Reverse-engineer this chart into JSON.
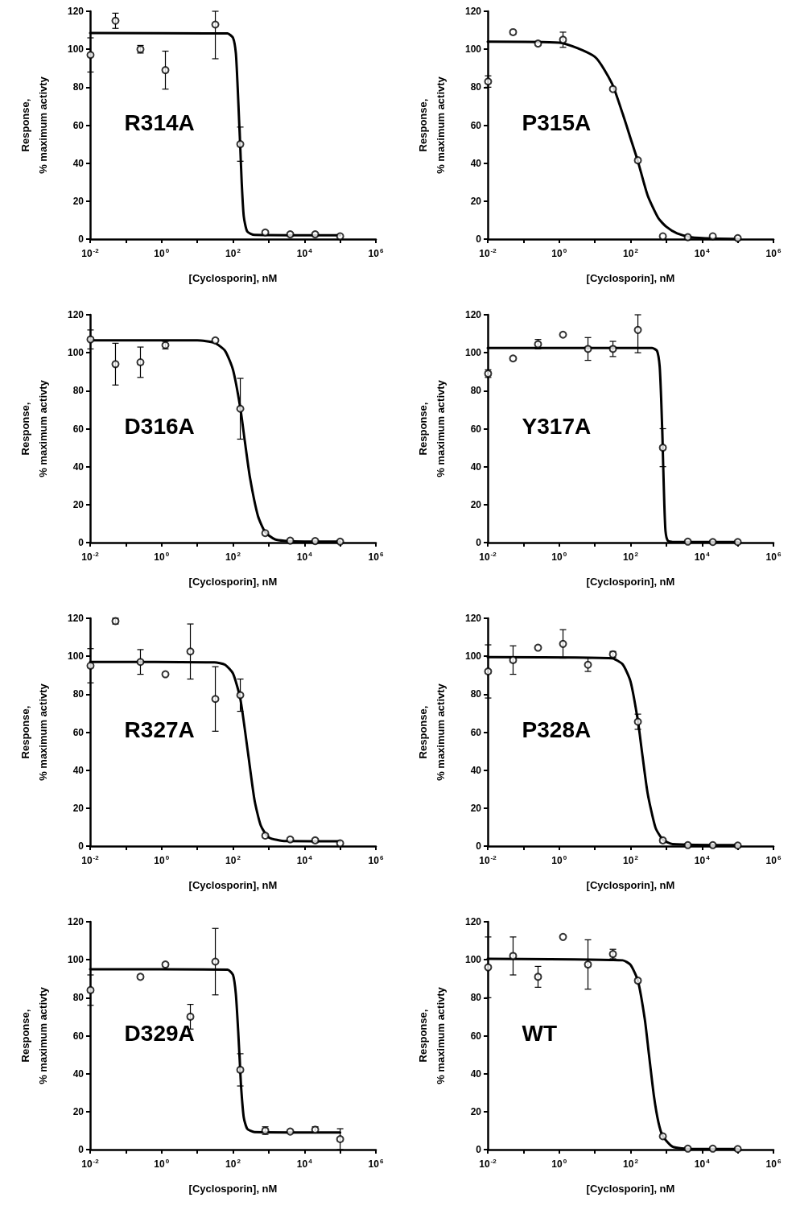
{
  "chart_data": [
    {
      "type": "scatter",
      "xlabel": "[Cyclosporin], nM",
      "ylabel": "Response,\n% maximum activty",
      "annotations": [
        "R314A"
      ],
      "log": "x",
      "grid": false,
      "xlim": [
        0.01,
        1000000
      ],
      "xticks": [
        {
          "value": 0.01,
          "label": "10$^{-2}$"
        },
        {
          "value": 0.1,
          "label": null
        },
        {
          "value": 1,
          "label": "10$^{0}$"
        },
        {
          "value": 10,
          "label": null
        },
        {
          "value": 100,
          "label": "10$^{2}$"
        },
        {
          "value": 1000,
          "label": null
        },
        {
          "value": 10000,
          "label": "10$^{4}$"
        },
        {
          "value": 100000,
          "label": null
        },
        {
          "value": 1000000,
          "label": "10$^{6}$"
        }
      ],
      "ylim": [
        0,
        120
      ],
      "yticks": [
        0,
        20,
        40,
        60,
        80,
        100,
        120
      ],
      "series": [
        {
          "color": "#000000",
          "marker": "circle",
          "x": [
            0.01024,
            0.0512,
            0.256,
            1.28,
            6.4,
            32,
            160,
            800,
            4000,
            20000,
            100000
          ],
          "values": [
            97,
            115,
            100,
            89,
            null,
            113,
            50,
            3.5,
            2.5,
            2.5,
            1.5
          ],
          "errors": [
            9,
            4,
            2,
            10,
            null,
            [
              95,
              120
            ],
            9,
            null,
            null,
            null,
            null
          ]
        },
        {
          "type": "line",
          "color": "#000000",
          "marker": "none",
          "line_style": "solid",
          "x": [
            0.01,
            70,
            100,
            120,
            135,
            150,
            160,
            175,
            200,
            250,
            400,
            100000
          ],
          "values": [
            108.5,
            108.3,
            106,
            98,
            80,
            60,
            48,
            30,
            12,
            4,
            2.2,
            2
          ]
        }
      ]
    },
    {
      "type": "scatter",
      "xlabel": "[Cyclosporin], nM",
      "ylabel": "Response,\n% maximum activty",
      "annotations": [
        "P315A"
      ],
      "log": "x",
      "grid": false,
      "xlim": [
        0.01,
        1000000
      ],
      "xticks": [
        {
          "value": 0.01,
          "label": "10$^{-2}$"
        },
        {
          "value": 0.1,
          "label": null
        },
        {
          "value": 1,
          "label": "10$^{0}$"
        },
        {
          "value": 10,
          "label": null
        },
        {
          "value": 100,
          "label": "10$^{2}$"
        },
        {
          "value": 1000,
          "label": null
        },
        {
          "value": 10000,
          "label": "10$^{4}$"
        },
        {
          "value": 100000,
          "label": null
        },
        {
          "value": 1000000,
          "label": "10$^{6}$"
        }
      ],
      "ylim": [
        0,
        120
      ],
      "yticks": [
        0,
        20,
        40,
        60,
        80,
        100,
        120
      ],
      "series": [
        {
          "color": "#000000",
          "marker": "circle",
          "x": [
            0.01024,
            0.0512,
            0.256,
            1.28,
            6.4,
            32,
            160,
            800,
            4000,
            20000,
            100000
          ],
          "values": [
            83,
            109,
            103,
            105,
            null,
            79,
            41.5,
            1.5,
            1,
            1.5,
            0.5
          ],
          "errors": [
            3,
            null,
            null,
            4,
            null,
            null,
            null,
            null,
            null,
            null,
            null
          ]
        },
        {
          "type": "line",
          "color": "#000000",
          "marker": "none",
          "line_style": "solid",
          "x": [
            0.01,
            1,
            10,
            30,
            60,
            100,
            160,
            300,
            600,
            1000,
            2000,
            5000,
            20000,
            100000
          ],
          "values": [
            104,
            103.5,
            96,
            82,
            66,
            53,
            41,
            23,
            11,
            6.5,
            3,
            1,
            0.3,
            0.1
          ]
        }
      ]
    },
    {
      "type": "scatter",
      "xlabel": "[Cyclosporin], nM",
      "ylabel": "Response,\n% maximum activty",
      "annotations": [
        "D316A"
      ],
      "log": "x",
      "grid": false,
      "xlim": [
        0.01,
        1000000
      ],
      "xticks": [
        {
          "value": 0.01,
          "label": "10$^{-2}$"
        },
        {
          "value": 0.1,
          "label": null
        },
        {
          "value": 1,
          "label": "10$^{0}$"
        },
        {
          "value": 10,
          "label": null
        },
        {
          "value": 100,
          "label": "10$^{2}$"
        },
        {
          "value": 1000,
          "label": null
        },
        {
          "value": 10000,
          "label": "10$^{4}$"
        },
        {
          "value": 100000,
          "label": null
        },
        {
          "value": 1000000,
          "label": "10$^{6}$"
        }
      ],
      "ylim": [
        0,
        120
      ],
      "yticks": [
        0,
        20,
        40,
        60,
        80,
        100,
        120
      ],
      "series": [
        {
          "color": "#000000",
          "marker": "circle",
          "x": [
            0.01024,
            0.0512,
            0.256,
            1.28,
            6.4,
            32,
            160,
            800,
            4000,
            20000,
            100000
          ],
          "values": [
            107,
            94,
            95,
            104,
            null,
            106.5,
            70.5,
            5,
            1,
            0.8,
            0.5
          ],
          "errors": [
            5,
            11,
            8,
            2,
            null,
            null,
            16,
            null,
            null,
            null,
            null
          ]
        },
        {
          "type": "line",
          "color": "#000000",
          "marker": "none",
          "line_style": "solid",
          "x": [
            0.01,
            10,
            30,
            60,
            100,
            160,
            214,
            300,
            500,
            800,
            1500,
            5000,
            100000
          ],
          "values": [
            106.5,
            106.5,
            105.3,
            101,
            91,
            71,
            53.5,
            34,
            14,
            5.5,
            1.7,
            0.6,
            0.5
          ]
        }
      ]
    },
    {
      "type": "scatter",
      "xlabel": "[Cyclosporin], nM",
      "ylabel": "Response,\n% maximum activty",
      "annotations": [
        "Y317A"
      ],
      "log": "x",
      "grid": false,
      "xlim": [
        0.01,
        1000000
      ],
      "xticks": [
        {
          "value": 0.01,
          "label": "10$^{-2}$"
        },
        {
          "value": 0.1,
          "label": null
        },
        {
          "value": 1,
          "label": "10$^{0}$"
        },
        {
          "value": 10,
          "label": null
        },
        {
          "value": 100,
          "label": "10$^{2}$"
        },
        {
          "value": 1000,
          "label": null
        },
        {
          "value": 10000,
          "label": "10$^{4}$"
        },
        {
          "value": 100000,
          "label": null
        },
        {
          "value": 1000000,
          "label": "10$^{6}$"
        }
      ],
      "ylim": [
        0,
        120
      ],
      "yticks": [
        0,
        20,
        40,
        60,
        80,
        100,
        120
      ],
      "series": [
        {
          "color": "#000000",
          "marker": "circle",
          "x": [
            0.01024,
            0.0512,
            0.256,
            1.28,
            6.4,
            32,
            160,
            800,
            4000,
            20000,
            100000
          ],
          "values": [
            89,
            97,
            104.5,
            109.5,
            102,
            102,
            112,
            50,
            0.5,
            0.3,
            0.3
          ],
          "errors": [
            2,
            null,
            2.5,
            null,
            6,
            4,
            [
              100,
              120
            ],
            10,
            null,
            null,
            null
          ]
        },
        {
          "type": "line",
          "color": "#000000",
          "marker": "none",
          "line_style": "solid",
          "x": [
            0.01,
            400,
            550,
            650,
            720,
            780,
            820,
            880,
            950,
            1100,
            1500,
            100000
          ],
          "values": [
            102.5,
            102.5,
            101,
            93,
            75,
            55,
            40,
            20,
            6,
            1,
            0.3,
            0.3
          ]
        }
      ]
    },
    {
      "type": "scatter",
      "xlabel": "[Cyclosporin], nM",
      "ylabel": "Response,\n% maximum activty",
      "annotations": [
        "R327A"
      ],
      "log": "x",
      "grid": false,
      "xlim": [
        0.01,
        1000000
      ],
      "xticks": [
        {
          "value": 0.01,
          "label": "10$^{-2}$"
        },
        {
          "value": 0.1,
          "label": null
        },
        {
          "value": 1,
          "label": "10$^{0}$"
        },
        {
          "value": 10,
          "label": null
        },
        {
          "value": 100,
          "label": "10$^{2}$"
        },
        {
          "value": 1000,
          "label": null
        },
        {
          "value": 10000,
          "label": "10$^{4}$"
        },
        {
          "value": 100000,
          "label": null
        },
        {
          "value": 1000000,
          "label": "10$^{6}$"
        }
      ],
      "ylim": [
        0,
        120
      ],
      "yticks": [
        0,
        20,
        40,
        60,
        80,
        100,
        120
      ],
      "series": [
        {
          "color": "#000000",
          "marker": "circle",
          "x": [
            0.01024,
            0.0512,
            0.256,
            1.28,
            6.4,
            32,
            160,
            800,
            4000,
            20000,
            100000
          ],
          "values": [
            95,
            118.5,
            97,
            90.5,
            102.5,
            77.5,
            79.5,
            5.5,
            3.5,
            3,
            1.5
          ],
          "errors": [
            9,
            1.5,
            6.5,
            null,
            14.5,
            17,
            8.5,
            null,
            null,
            null,
            null
          ]
        },
        {
          "type": "line",
          "color": "#000000",
          "marker": "none",
          "line_style": "solid",
          "x": [
            0.01,
            30,
            60,
            100,
            160,
            260,
            400,
            600,
            1000,
            3000,
            100000
          ],
          "values": [
            97,
            96.8,
            95.5,
            90.9,
            77.7,
            49.8,
            24.3,
            10.8,
            4.6,
            2.6,
            2.5
          ]
        }
      ]
    },
    {
      "type": "scatter",
      "xlabel": "[Cyclosporin], nM",
      "ylabel": "Response,\n% maximum activty",
      "annotations": [
        "P328A"
      ],
      "log": "x",
      "grid": false,
      "xlim": [
        0.01,
        1000000
      ],
      "xticks": [
        {
          "value": 0.01,
          "label": "10$^{-2}$"
        },
        {
          "value": 0.1,
          "label": null
        },
        {
          "value": 1,
          "label": "10$^{0}$"
        },
        {
          "value": 10,
          "label": null
        },
        {
          "value": 100,
          "label": "10$^{2}$"
        },
        {
          "value": 1000,
          "label": null
        },
        {
          "value": 10000,
          "label": "10$^{4}$"
        },
        {
          "value": 100000,
          "label": null
        },
        {
          "value": 1000000,
          "label": "10$^{6}$"
        }
      ],
      "ylim": [
        0,
        120
      ],
      "yticks": [
        0,
        20,
        40,
        60,
        80,
        100,
        120
      ],
      "series": [
        {
          "color": "#000000",
          "marker": "circle",
          "x": [
            0.01024,
            0.0512,
            0.256,
            1.28,
            6.4,
            32,
            160,
            800,
            4000,
            20000,
            100000
          ],
          "values": [
            92,
            98,
            104.5,
            106.5,
            95.5,
            101,
            65.5,
            3,
            0.5,
            0.5,
            0.3
          ],
          "errors": [
            14,
            7.5,
            null,
            7.5,
            3.5,
            1.5,
            4,
            null,
            null,
            null,
            null
          ]
        },
        {
          "type": "line",
          "color": "#000000",
          "marker": "none",
          "line_style": "solid",
          "x": [
            0.01,
            30,
            60,
            100,
            160,
            207,
            300,
            500,
            800,
            1500,
            100000
          ],
          "values": [
            99.5,
            98.9,
            95.7,
            86.6,
            66,
            50,
            27.8,
            9.6,
            3.4,
            1.1,
            0.5
          ]
        }
      ]
    },
    {
      "type": "scatter",
      "xlabel": "[Cyclosporin], nM",
      "ylabel": "Response,\n% maximum activty",
      "annotations": [
        "D329A"
      ],
      "log": "x",
      "grid": false,
      "xlim": [
        0.01,
        1000000
      ],
      "xticks": [
        {
          "value": 0.01,
          "label": "10$^{-2}$"
        },
        {
          "value": 0.1,
          "label": null
        },
        {
          "value": 1,
          "label": "10$^{0}$"
        },
        {
          "value": 10,
          "label": null
        },
        {
          "value": 100,
          "label": "10$^{2}$"
        },
        {
          "value": 1000,
          "label": null
        },
        {
          "value": 10000,
          "label": "10$^{4}$"
        },
        {
          "value": 100000,
          "label": null
        },
        {
          "value": 1000000,
          "label": "10$^{6}$"
        }
      ],
      "ylim": [
        0,
        120
      ],
      "yticks": [
        0,
        20,
        40,
        60,
        80,
        100,
        120
      ],
      "series": [
        {
          "color": "#000000",
          "marker": "circle",
          "x": [
            0.01024,
            0.0512,
            0.256,
            1.28,
            6.4,
            32,
            160,
            800,
            4000,
            20000,
            100000
          ],
          "values": [
            84,
            null,
            91,
            97.5,
            70,
            99,
            42,
            10,
            9.5,
            10.5,
            5.5
          ],
          "errors": [
            8,
            null,
            null,
            null,
            6.5,
            17.5,
            8.5,
            2,
            null,
            1.5,
            5.5
          ]
        },
        {
          "type": "line",
          "color": "#000000",
          "marker": "none",
          "line_style": "solid",
          "x": [
            0.01,
            70,
            100,
            120,
            140,
            155,
            170,
            200,
            250,
            400,
            100000
          ],
          "values": [
            95,
            94.8,
            92,
            82,
            62,
            46,
            32,
            17,
            11,
            9.2,
            9
          ]
        }
      ]
    },
    {
      "type": "scatter",
      "xlabel": "[Cyclosporin], nM",
      "ylabel": "Response,\n% maximum activty",
      "annotations": [
        "WT"
      ],
      "log": "x",
      "grid": false,
      "xlim": [
        0.01,
        1000000
      ],
      "xticks": [
        {
          "value": 0.01,
          "label": "10$^{-2}$"
        },
        {
          "value": 0.1,
          "label": null
        },
        {
          "value": 1,
          "label": "10$^{0}$"
        },
        {
          "value": 10,
          "label": null
        },
        {
          "value": 100,
          "label": "10$^{2}$"
        },
        {
          "value": 1000,
          "label": null
        },
        {
          "value": 10000,
          "label": "10$^{4}$"
        },
        {
          "value": 100000,
          "label": null
        },
        {
          "value": 1000000,
          "label": "10$^{6}$"
        }
      ],
      "ylim": [
        0,
        120
      ],
      "yticks": [
        0,
        20,
        40,
        60,
        80,
        100,
        120
      ],
      "series": [
        {
          "color": "#000000",
          "marker": "circle",
          "x": [
            0.01024,
            0.0512,
            0.256,
            1.28,
            6.4,
            32,
            160,
            800,
            4000,
            20000,
            100000
          ],
          "values": [
            96,
            102,
            91,
            112,
            97.5,
            103,
            89,
            7,
            0.5,
            0.5,
            0.3
          ],
          "errors": [
            16,
            10,
            5.5,
            null,
            13,
            2.5,
            null,
            null,
            null,
            null,
            null
          ]
        },
        {
          "type": "line",
          "color": "#000000",
          "marker": "none",
          "line_style": "solid",
          "x": [
            0.01,
            60,
            100,
            160,
            250,
            325,
            450,
            600,
            800,
            1500,
            5000,
            100000
          ],
          "values": [
            100.5,
            99.7,
            97.3,
            89,
            68.6,
            50.4,
            28.2,
            14.5,
            7,
            1.5,
            0.3,
            0.3
          ]
        }
      ]
    }
  ]
}
